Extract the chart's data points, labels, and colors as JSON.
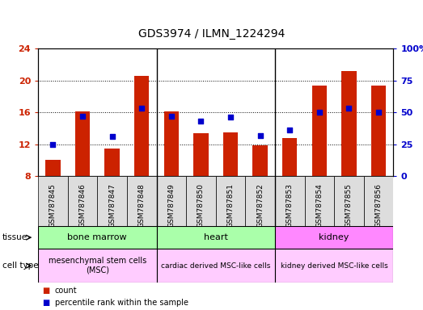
{
  "title": "GDS3974 / ILMN_1224294",
  "samples": [
    "GSM787845",
    "GSM787846",
    "GSM787847",
    "GSM787848",
    "GSM787849",
    "GSM787850",
    "GSM787851",
    "GSM787852",
    "GSM787853",
    "GSM787854",
    "GSM787855",
    "GSM787856"
  ],
  "count_values": [
    10.0,
    16.1,
    11.5,
    20.6,
    16.1,
    13.4,
    13.5,
    11.9,
    12.8,
    19.4,
    21.2,
    19.4
  ],
  "percentile_values": [
    25,
    47,
    31,
    53,
    47,
    43,
    46,
    32,
    36,
    50,
    53,
    50
  ],
  "bar_color": "#cc2200",
  "dot_color": "#0000cc",
  "ylim_left": [
    8,
    24
  ],
  "ylim_right": [
    0,
    100
  ],
  "yticks_left": [
    8,
    12,
    16,
    20,
    24
  ],
  "yticks_right": [
    0,
    25,
    50,
    75,
    100
  ],
  "ytick_labels_right": [
    "0",
    "25",
    "50",
    "75",
    "100%"
  ],
  "bar_bottom": 8,
  "bg_color": "#ffffff",
  "tissue_groups": [
    {
      "label": "bone marrow",
      "start": 0,
      "end": 3,
      "color": "#aaffaa"
    },
    {
      "label": "heart",
      "start": 4,
      "end": 7,
      "color": "#aaffaa"
    },
    {
      "label": "kidney",
      "start": 8,
      "end": 11,
      "color": "#ff88ff"
    }
  ],
  "cell_type_groups": [
    {
      "label": "mesenchymal stem cells\n(MSC)",
      "start": 0,
      "end": 3,
      "color": "#ffccff",
      "fontsize": 7
    },
    {
      "label": "cardiac derived MSC-like cells",
      "start": 4,
      "end": 7,
      "color": "#ffccff",
      "fontsize": 6.5
    },
    {
      "label": "kidney derived MSC-like cells",
      "start": 8,
      "end": 11,
      "color": "#ffccff",
      "fontsize": 6.5
    }
  ],
  "tissue_row_label": "tissue",
  "cell_type_row_label": "cell type",
  "legend_count_label": "count",
  "legend_percentile_label": "percentile rank within the sample",
  "sample_box_color": "#dddddd"
}
